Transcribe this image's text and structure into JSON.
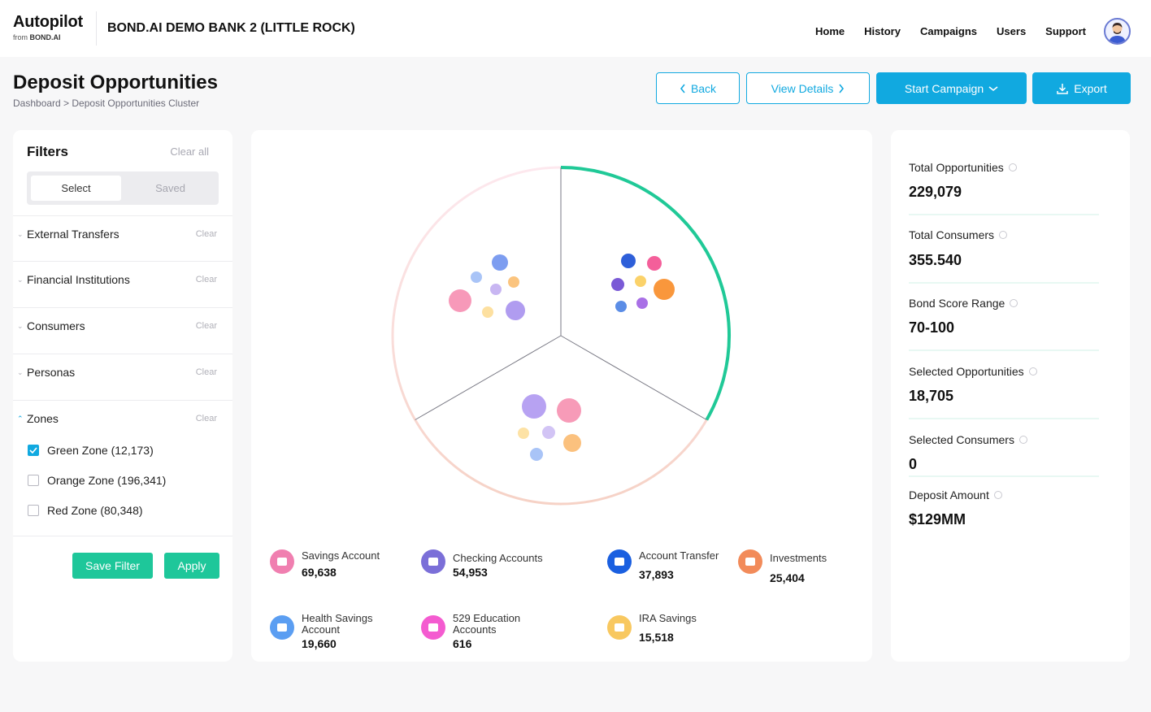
{
  "header": {
    "logo": "Autopilot",
    "logo_sub_prefix": "from ",
    "logo_sub_brand": "BOND.AI",
    "bank_name": "BOND.AI DEMO BANK 2 (LITTLE ROCK)",
    "nav": [
      "Home",
      "History",
      "Campaigns",
      "Users",
      "Support"
    ]
  },
  "page": {
    "title": "Deposit Opportunities",
    "breadcrumb": "Dashboard > Deposit Opportunities Cluster",
    "buttons": {
      "back": "Back",
      "view_details": "View Details",
      "start_campaign": "Start Campaign",
      "export": "Export"
    }
  },
  "filters": {
    "title": "Filters",
    "clear_all": "Clear all",
    "tabs": [
      "Select",
      "Saved"
    ],
    "groups": [
      {
        "label": "External Transfers",
        "clear": "Clear"
      },
      {
        "label": "Financial Institutions",
        "clear": "Clear"
      },
      {
        "label": "Consumers",
        "clear": "Clear"
      },
      {
        "label": "Personas",
        "clear": "Clear"
      },
      {
        "label": "Zones",
        "clear": "Clear"
      }
    ],
    "zones": [
      {
        "label": "Green Zone (12,173)",
        "checked": true
      },
      {
        "label": "Orange Zone (196,341)",
        "checked": false
      },
      {
        "label": "Red Zone (80,348)",
        "checked": false
      }
    ],
    "save_filter": "Save Filter",
    "apply": "Apply"
  },
  "legend": [
    {
      "name": "Savings Account",
      "value": "69,638",
      "color": "#f07fb0",
      "icon": "piggy-bank-icon"
    },
    {
      "name": "Checking Accounts",
      "value": "54,953",
      "color": "#7b6fd8",
      "icon": "bank-icon"
    },
    {
      "name": "Account Transfer",
      "value": "37,893",
      "color": "#1a5fe0",
      "icon": "transfer-icon"
    },
    {
      "name": "Investments",
      "value": "25,404",
      "color": "#f28b5a",
      "icon": "chart-icon"
    },
    {
      "name": "Health Savings Account",
      "value": "19,660",
      "color": "#5b9ef2",
      "icon": "health-icon"
    },
    {
      "name": "529 Education Accounts",
      "value": "616",
      "color": "#f45bd0",
      "icon": "education-icon"
    },
    {
      "name": "IRA Savings",
      "value": "15,518",
      "color": "#f8c860",
      "icon": "savings-icon"
    }
  ],
  "stats": [
    {
      "label": "Total Opportunities",
      "value": "229,079"
    },
    {
      "label": "Total Consumers",
      "value": "355.540"
    },
    {
      "label": "Bond Score Range",
      "value": "70-100"
    },
    {
      "label": "Selected Opportunities",
      "value": "18,705"
    },
    {
      "label": "Selected Consumers",
      "value": "0"
    },
    {
      "label": "Deposit Amount",
      "value": "$129MM"
    }
  ]
}
